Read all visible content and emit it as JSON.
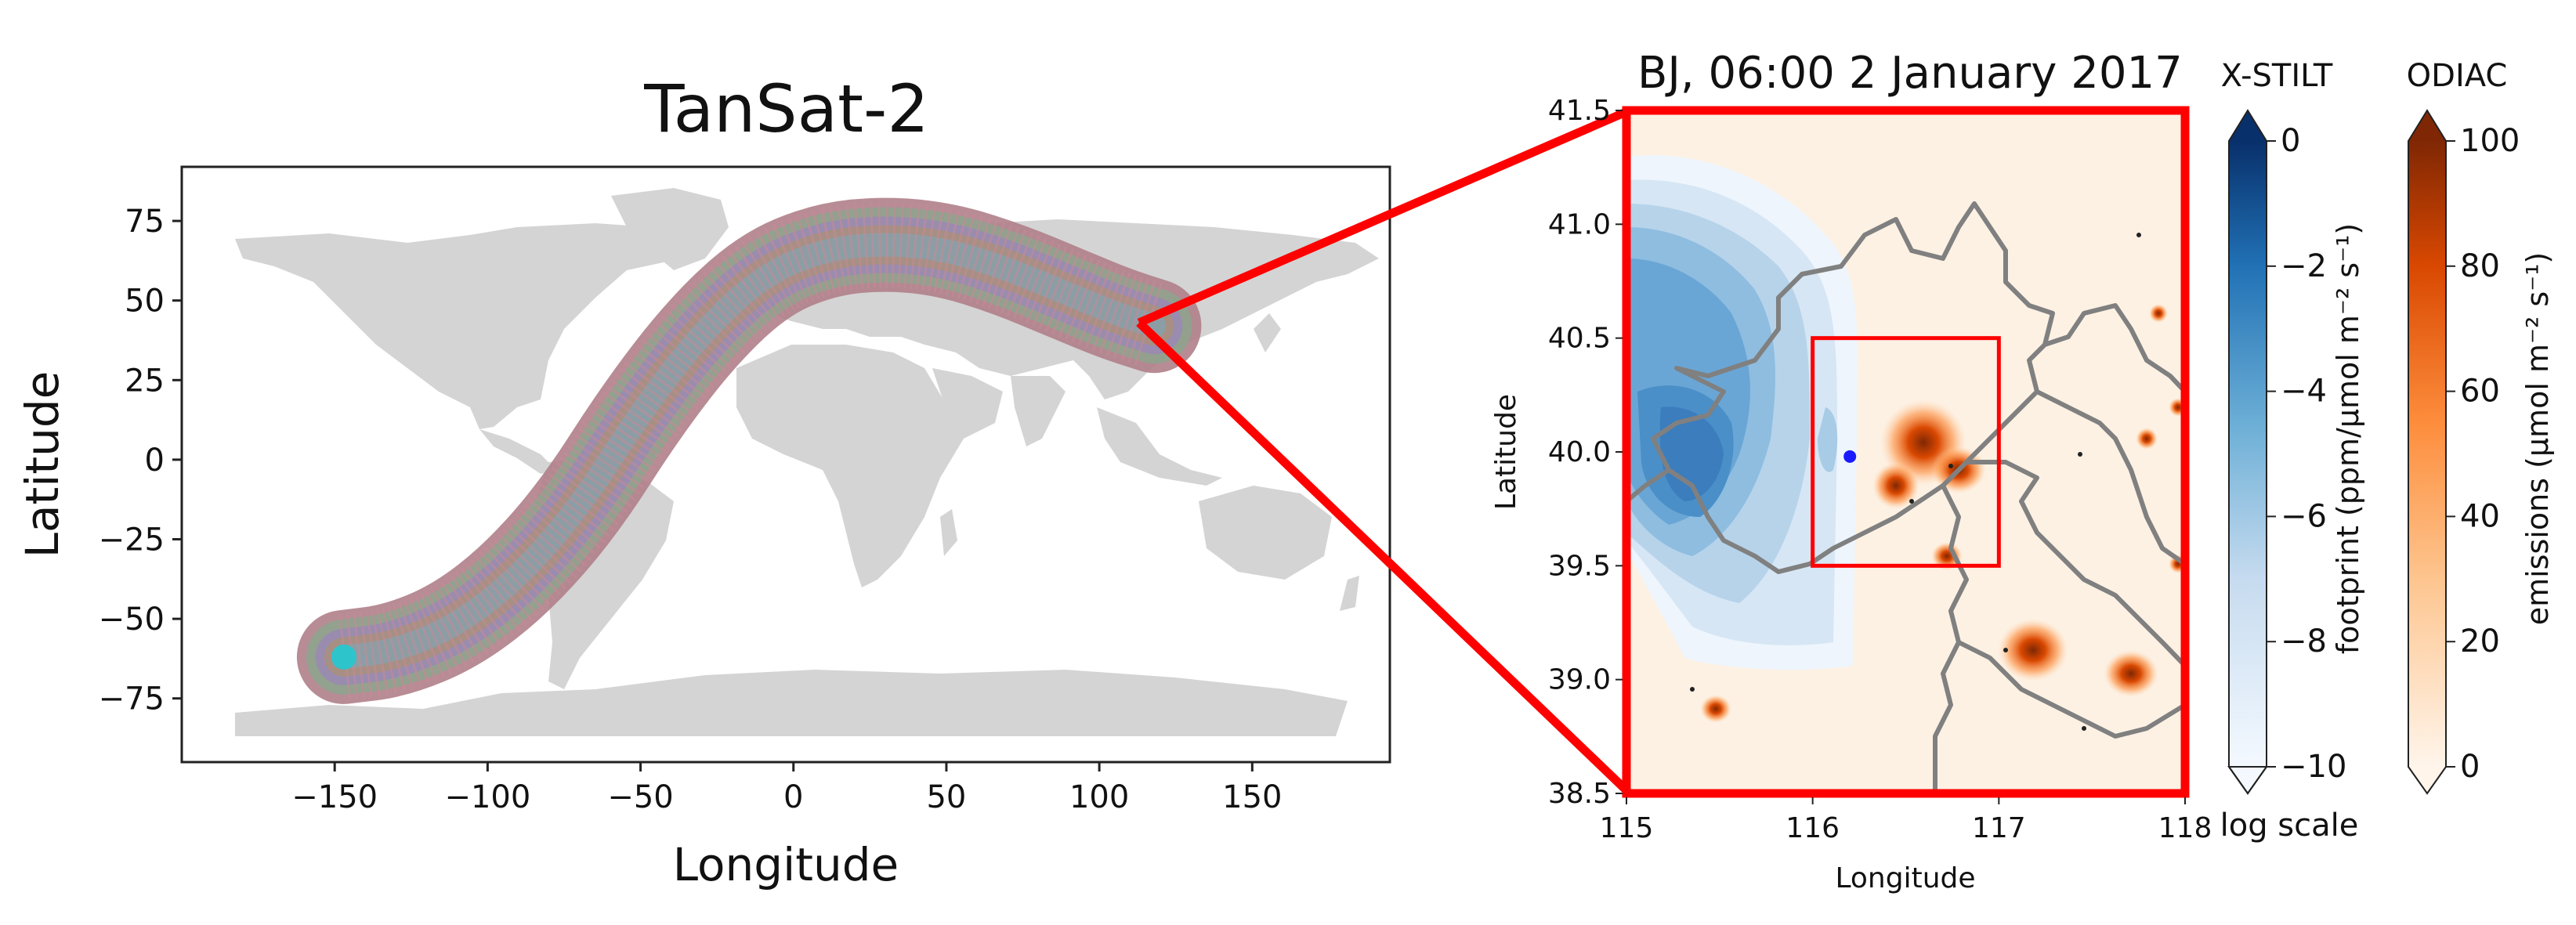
{
  "chart_data": [
    {
      "type": "scatter",
      "title": "TanSat-2",
      "xlabel": "Longitude",
      "ylabel": "Latitude",
      "xlim": [
        -200,
        195
      ],
      "ylim": [
        -95,
        92
      ],
      "xticks": [
        -150,
        -100,
        -50,
        0,
        50,
        100,
        150
      ],
      "yticks": [
        -75,
        -50,
        -25,
        0,
        25,
        50,
        75
      ],
      "xtick_labels": [
        "−150",
        "−100",
        "−50",
        "0",
        "50",
        "100",
        "150"
      ],
      "ytick_labels": [
        "−75",
        "−50",
        "−25",
        "0",
        "25",
        "50",
        "75"
      ],
      "background": "world land map (grey)",
      "swath_track": {
        "x": [
          -147,
          -130,
          -110,
          -90,
          -70,
          -50,
          -30,
          -10,
          10,
          30,
          50,
          70,
          90,
          105,
          118
        ],
        "y": [
          -62,
          -60,
          -52,
          -37,
          -15,
          15,
          40,
          58,
          66,
          68,
          66,
          60,
          52,
          46,
          42
        ]
      },
      "colors": {
        "land": "#d4d4d4",
        "swath": "#a48c8c",
        "swath_start": "#2ec4cc"
      }
    },
    {
      "type": "heatmap",
      "title": "BJ, 06:00 2 January 2017",
      "xlabel": "Longitude",
      "ylabel": "Latitude",
      "xlim": [
        115,
        118
      ],
      "ylim": [
        38.5,
        41.5
      ],
      "xticks": [
        115,
        116,
        117,
        118
      ],
      "yticks": [
        38.5,
        39.0,
        39.5,
        40.0,
        40.5,
        41.0,
        41.5
      ],
      "xtick_labels": [
        "115",
        "116",
        "117",
        "118"
      ],
      "ytick_labels": [
        "38.5",
        "39.0",
        "39.5",
        "40.0",
        "40.5",
        "41.0",
        "41.5"
      ],
      "receptor": {
        "lon": 116.2,
        "lat": 39.98
      },
      "inner_box": {
        "lon": [
          116.0,
          117.0
        ],
        "lat": [
          39.5,
          40.5
        ]
      },
      "colorbars": [
        {
          "title": "X-STILT",
          "label": "footprint (ppm/μmol m⁻² s⁻¹)",
          "ticks": [
            0,
            -2,
            -4,
            -6,
            -8,
            -10
          ],
          "tick_labels": [
            "0",
            "−2",
            "−4",
            "−6",
            "−8",
            "−10"
          ],
          "range": [
            -10,
            0
          ],
          "note": "log scale"
        },
        {
          "title": "ODIAC",
          "label": "emissions (μmol m⁻² s⁻¹)",
          "ticks": [
            0,
            20,
            40,
            60,
            80,
            100
          ],
          "tick_labels": [
            "0",
            "20",
            "40",
            "60",
            "80",
            "100"
          ],
          "range": [
            0,
            100
          ]
        }
      ],
      "colors": {
        "highlight": "#ff0000",
        "border": "#7f7f7f",
        "receptor": "#1a1aff"
      }
    }
  ]
}
